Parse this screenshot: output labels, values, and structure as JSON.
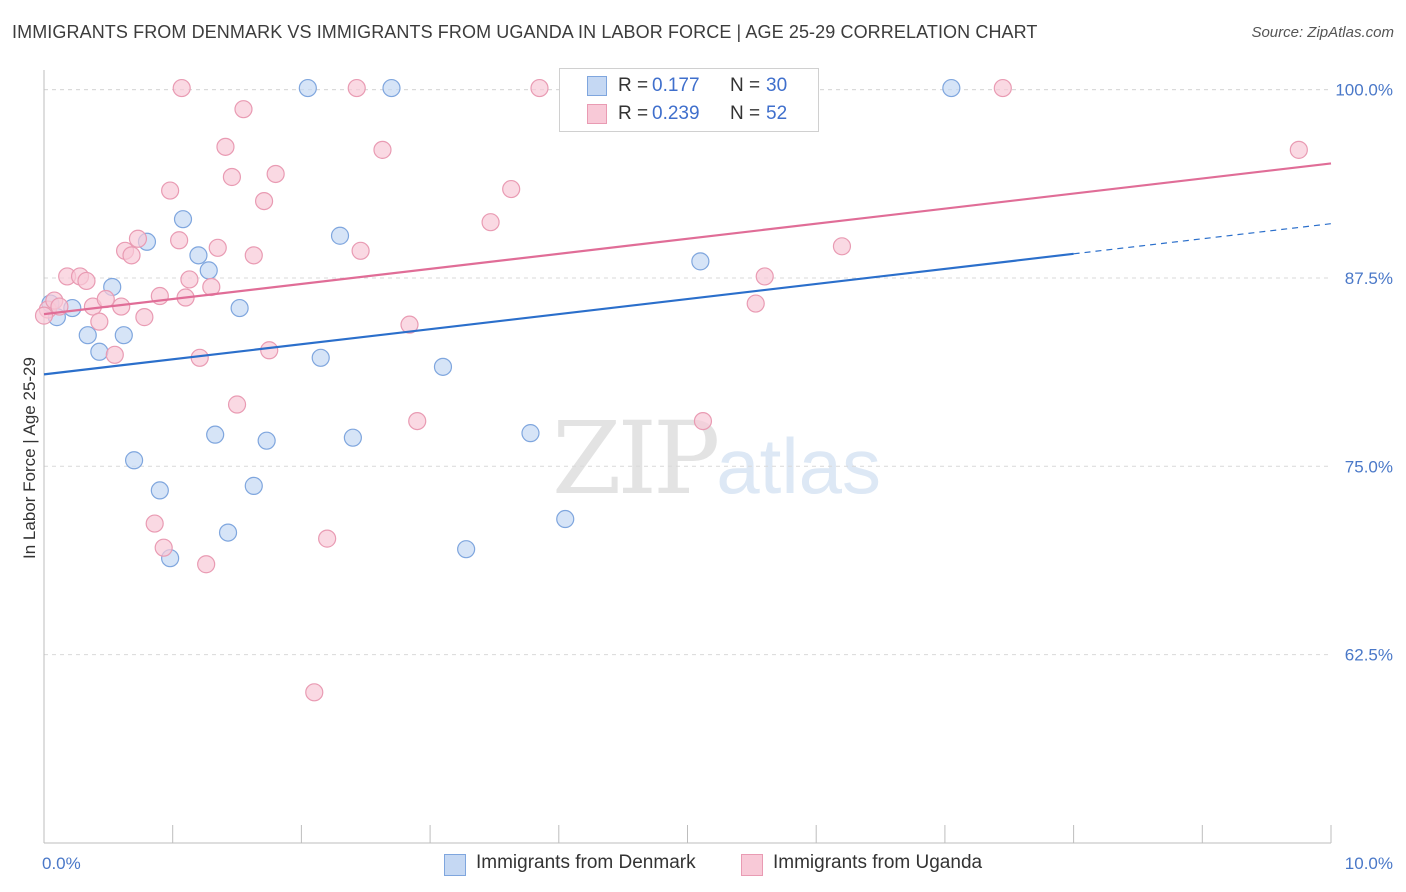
{
  "header": {
    "title": "IMMIGRANTS FROM DENMARK VS IMMIGRANTS FROM UGANDA IN LABOR FORCE | AGE 25-29 CORRELATION CHART",
    "source": "Source: ZipAtlas.com"
  },
  "watermark": {
    "zip": "ZIP",
    "atlas": "atlas"
  },
  "legend": {
    "denmark": {
      "r_label": "R =",
      "r_value": "0.177",
      "n_label": "N =",
      "n_value": "30"
    },
    "uganda": {
      "r_label": "R =",
      "r_value": "0.239",
      "n_label": "N =",
      "n_value": "52"
    }
  },
  "colors": {
    "denmark_fill": "#c5d8f3",
    "denmark_stroke": "#7fa6de",
    "denmark_line": "#2b6fcb",
    "uganda_fill": "#f8c9d7",
    "uganda_stroke": "#e99bb3",
    "uganda_line": "#e06d97",
    "tick_text": "#4a78c8",
    "grid": "#d9d9d9"
  },
  "chart_data": {
    "type": "scatter",
    "title": "IMMIGRANTS FROM DENMARK VS IMMIGRANTS FROM UGANDA IN LABOR FORCE | AGE 25-29 CORRELATION CHART",
    "xlabel": "",
    "ylabel": "In Labor Force | Age 25-29",
    "xlim": [
      0,
      10
    ],
    "ylim": [
      50,
      101.3
    ],
    "x_tick_labels": [
      "0.0%",
      "10.0%"
    ],
    "y_ticks": [
      62.5,
      75.0,
      87.5,
      100.0
    ],
    "y_tick_labels": [
      "62.5%",
      "75.0%",
      "87.5%",
      "100.0%"
    ],
    "grid": "horizontal-dashed",
    "legend_placement": "bottom",
    "series": [
      {
        "name": "Immigrants from Denmark",
        "color": "#7fa6de",
        "points": [
          [
            0.05,
            85.8
          ],
          [
            0.1,
            84.9
          ],
          [
            0.22,
            85.5
          ],
          [
            0.34,
            83.7
          ],
          [
            0.43,
            82.6
          ],
          [
            0.53,
            86.9
          ],
          [
            0.62,
            83.7
          ],
          [
            0.7,
            75.4
          ],
          [
            0.8,
            89.9
          ],
          [
            0.9,
            73.4
          ],
          [
            0.98,
            68.9
          ],
          [
            1.08,
            91.4
          ],
          [
            1.2,
            89.0
          ],
          [
            1.28,
            88.0
          ],
          [
            1.33,
            77.1
          ],
          [
            1.43,
            70.6
          ],
          [
            1.52,
            85.5
          ],
          [
            1.63,
            73.7
          ],
          [
            1.73,
            76.7
          ],
          [
            2.05,
            100.1
          ],
          [
            2.15,
            82.2
          ],
          [
            2.3,
            90.3
          ],
          [
            2.4,
            76.9
          ],
          [
            2.7,
            100.1
          ],
          [
            3.1,
            81.6
          ],
          [
            3.28,
            69.5
          ],
          [
            3.78,
            77.2
          ],
          [
            4.05,
            71.5
          ],
          [
            5.1,
            88.6
          ],
          [
            7.05,
            100.1
          ]
        ],
        "trend": {
          "x0": 0,
          "y0": 81.1,
          "x1": 8.0,
          "y1": 89.1,
          "dashed_to_x": 10.0,
          "dashed_to_y": 91.1
        }
      },
      {
        "name": "Immigrants from Uganda",
        "color": "#e99bb3",
        "points": [
          [
            0.03,
            85.4
          ],
          [
            0.08,
            86.0
          ],
          [
            0.12,
            85.6
          ],
          [
            0.18,
            87.6
          ],
          [
            0.28,
            87.6
          ],
          [
            0.33,
            87.3
          ],
          [
            0.38,
            85.6
          ],
          [
            0.43,
            84.6
          ],
          [
            0.48,
            86.1
          ],
          [
            0.55,
            82.4
          ],
          [
            0.6,
            85.6
          ],
          [
            0.63,
            89.3
          ],
          [
            0.68,
            89.0
          ],
          [
            0.73,
            90.1
          ],
          [
            0.78,
            84.9
          ],
          [
            0.86,
            71.2
          ],
          [
            0.9,
            86.3
          ],
          [
            0.93,
            69.6
          ],
          [
            0.98,
            93.3
          ],
          [
            1.05,
            90.0
          ],
          [
            1.07,
            100.1
          ],
          [
            1.1,
            86.2
          ],
          [
            1.13,
            87.4
          ],
          [
            1.21,
            82.2
          ],
          [
            1.26,
            68.5
          ],
          [
            1.3,
            86.9
          ],
          [
            1.35,
            89.5
          ],
          [
            1.41,
            96.2
          ],
          [
            1.46,
            94.2
          ],
          [
            1.5,
            79.1
          ],
          [
            1.55,
            98.7
          ],
          [
            1.63,
            89.0
          ],
          [
            1.71,
            92.6
          ],
          [
            1.75,
            82.7
          ],
          [
            1.8,
            94.4
          ],
          [
            2.1,
            60.0
          ],
          [
            2.2,
            70.2
          ],
          [
            2.43,
            100.1
          ],
          [
            2.46,
            89.3
          ],
          [
            2.63,
            96.0
          ],
          [
            2.84,
            84.4
          ],
          [
            2.9,
            78.0
          ],
          [
            3.47,
            91.2
          ],
          [
            3.63,
            93.4
          ],
          [
            3.85,
            100.1
          ],
          [
            5.12,
            78.0
          ],
          [
            5.53,
            85.8
          ],
          [
            5.6,
            87.6
          ],
          [
            6.2,
            89.6
          ],
          [
            7.45,
            100.1
          ],
          [
            9.75,
            96.0
          ],
          [
            0.0,
            85.0
          ]
        ],
        "trend": {
          "x0": 0,
          "y0": 85.1,
          "x1": 10.0,
          "y1": 95.1
        }
      }
    ]
  },
  "bottom_legend": {
    "denmark": "Immigrants from Denmark",
    "uganda": "Immigrants from Uganda"
  }
}
